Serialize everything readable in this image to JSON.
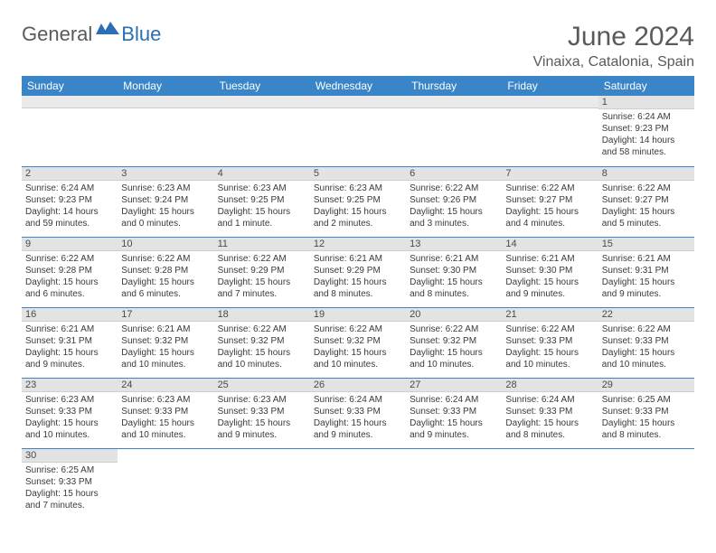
{
  "logo": {
    "text1": "General",
    "text2": "Blue"
  },
  "title": "June 2024",
  "location": "Vinaixa, Catalonia, Spain",
  "colors": {
    "header_bg": "#3a85c8",
    "header_text": "#ffffff",
    "daynum_bg": "#e3e3e3",
    "border": "#3a85c8",
    "logo_gray": "#5a5a5a",
    "logo_blue": "#2a6fb5",
    "text": "#3a3a3a"
  },
  "typography": {
    "title_fontsize": 30,
    "location_fontsize": 16,
    "header_fontsize": 12,
    "cell_fontsize": 10,
    "logo_fontsize": 22,
    "font_family": "Arial"
  },
  "days_of_week": [
    "Sunday",
    "Monday",
    "Tuesday",
    "Wednesday",
    "Thursday",
    "Friday",
    "Saturday"
  ],
  "weeks": [
    [
      null,
      null,
      null,
      null,
      null,
      null,
      {
        "n": "1",
        "sr": "Sunrise: 6:24 AM",
        "ss": "Sunset: 9:23 PM",
        "dl": "Daylight: 14 hours and 58 minutes."
      }
    ],
    [
      {
        "n": "2",
        "sr": "Sunrise: 6:24 AM",
        "ss": "Sunset: 9:23 PM",
        "dl": "Daylight: 14 hours and 59 minutes."
      },
      {
        "n": "3",
        "sr": "Sunrise: 6:23 AM",
        "ss": "Sunset: 9:24 PM",
        "dl": "Daylight: 15 hours and 0 minutes."
      },
      {
        "n": "4",
        "sr": "Sunrise: 6:23 AM",
        "ss": "Sunset: 9:25 PM",
        "dl": "Daylight: 15 hours and 1 minute."
      },
      {
        "n": "5",
        "sr": "Sunrise: 6:23 AM",
        "ss": "Sunset: 9:25 PM",
        "dl": "Daylight: 15 hours and 2 minutes."
      },
      {
        "n": "6",
        "sr": "Sunrise: 6:22 AM",
        "ss": "Sunset: 9:26 PM",
        "dl": "Daylight: 15 hours and 3 minutes."
      },
      {
        "n": "7",
        "sr": "Sunrise: 6:22 AM",
        "ss": "Sunset: 9:27 PM",
        "dl": "Daylight: 15 hours and 4 minutes."
      },
      {
        "n": "8",
        "sr": "Sunrise: 6:22 AM",
        "ss": "Sunset: 9:27 PM",
        "dl": "Daylight: 15 hours and 5 minutes."
      }
    ],
    [
      {
        "n": "9",
        "sr": "Sunrise: 6:22 AM",
        "ss": "Sunset: 9:28 PM",
        "dl": "Daylight: 15 hours and 6 minutes."
      },
      {
        "n": "10",
        "sr": "Sunrise: 6:22 AM",
        "ss": "Sunset: 9:28 PM",
        "dl": "Daylight: 15 hours and 6 minutes."
      },
      {
        "n": "11",
        "sr": "Sunrise: 6:22 AM",
        "ss": "Sunset: 9:29 PM",
        "dl": "Daylight: 15 hours and 7 minutes."
      },
      {
        "n": "12",
        "sr": "Sunrise: 6:21 AM",
        "ss": "Sunset: 9:29 PM",
        "dl": "Daylight: 15 hours and 8 minutes."
      },
      {
        "n": "13",
        "sr": "Sunrise: 6:21 AM",
        "ss": "Sunset: 9:30 PM",
        "dl": "Daylight: 15 hours and 8 minutes."
      },
      {
        "n": "14",
        "sr": "Sunrise: 6:21 AM",
        "ss": "Sunset: 9:30 PM",
        "dl": "Daylight: 15 hours and 9 minutes."
      },
      {
        "n": "15",
        "sr": "Sunrise: 6:21 AM",
        "ss": "Sunset: 9:31 PM",
        "dl": "Daylight: 15 hours and 9 minutes."
      }
    ],
    [
      {
        "n": "16",
        "sr": "Sunrise: 6:21 AM",
        "ss": "Sunset: 9:31 PM",
        "dl": "Daylight: 15 hours and 9 minutes."
      },
      {
        "n": "17",
        "sr": "Sunrise: 6:21 AM",
        "ss": "Sunset: 9:32 PM",
        "dl": "Daylight: 15 hours and 10 minutes."
      },
      {
        "n": "18",
        "sr": "Sunrise: 6:22 AM",
        "ss": "Sunset: 9:32 PM",
        "dl": "Daylight: 15 hours and 10 minutes."
      },
      {
        "n": "19",
        "sr": "Sunrise: 6:22 AM",
        "ss": "Sunset: 9:32 PM",
        "dl": "Daylight: 15 hours and 10 minutes."
      },
      {
        "n": "20",
        "sr": "Sunrise: 6:22 AM",
        "ss": "Sunset: 9:32 PM",
        "dl": "Daylight: 15 hours and 10 minutes."
      },
      {
        "n": "21",
        "sr": "Sunrise: 6:22 AM",
        "ss": "Sunset: 9:33 PM",
        "dl": "Daylight: 15 hours and 10 minutes."
      },
      {
        "n": "22",
        "sr": "Sunrise: 6:22 AM",
        "ss": "Sunset: 9:33 PM",
        "dl": "Daylight: 15 hours and 10 minutes."
      }
    ],
    [
      {
        "n": "23",
        "sr": "Sunrise: 6:23 AM",
        "ss": "Sunset: 9:33 PM",
        "dl": "Daylight: 15 hours and 10 minutes."
      },
      {
        "n": "24",
        "sr": "Sunrise: 6:23 AM",
        "ss": "Sunset: 9:33 PM",
        "dl": "Daylight: 15 hours and 10 minutes."
      },
      {
        "n": "25",
        "sr": "Sunrise: 6:23 AM",
        "ss": "Sunset: 9:33 PM",
        "dl": "Daylight: 15 hours and 9 minutes."
      },
      {
        "n": "26",
        "sr": "Sunrise: 6:24 AM",
        "ss": "Sunset: 9:33 PM",
        "dl": "Daylight: 15 hours and 9 minutes."
      },
      {
        "n": "27",
        "sr": "Sunrise: 6:24 AM",
        "ss": "Sunset: 9:33 PM",
        "dl": "Daylight: 15 hours and 9 minutes."
      },
      {
        "n": "28",
        "sr": "Sunrise: 6:24 AM",
        "ss": "Sunset: 9:33 PM",
        "dl": "Daylight: 15 hours and 8 minutes."
      },
      {
        "n": "29",
        "sr": "Sunrise: 6:25 AM",
        "ss": "Sunset: 9:33 PM",
        "dl": "Daylight: 15 hours and 8 minutes."
      }
    ],
    [
      {
        "n": "30",
        "sr": "Sunrise: 6:25 AM",
        "ss": "Sunset: 9:33 PM",
        "dl": "Daylight: 15 hours and 7 minutes."
      },
      null,
      null,
      null,
      null,
      null,
      null
    ]
  ]
}
